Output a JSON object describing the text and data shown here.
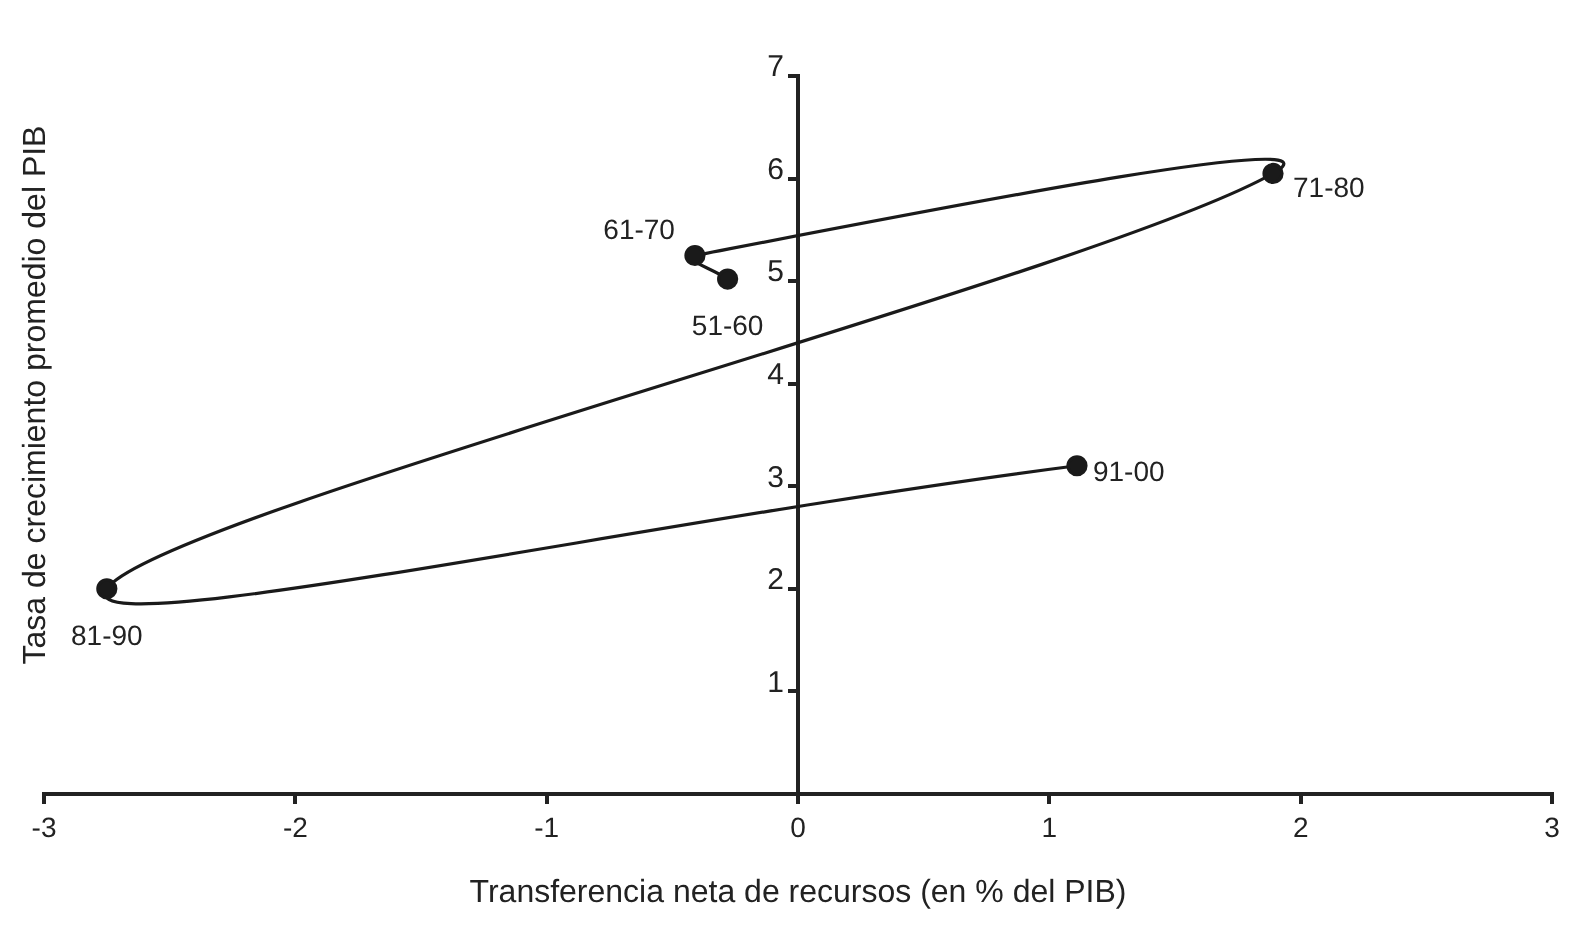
{
  "chart_data": {
    "type": "line",
    "xlabel": "Transferencia neta de recursos (en % del PIB)",
    "ylabel": "Tasa de crecimiento promedio del PIB",
    "series": [
      {
        "color": "#1a1a1a",
        "x": [
          -0.28,
          -0.41,
          1.89,
          -2.75,
          1.11
        ],
        "values": [
          5.02,
          5.25,
          6.05,
          2.0,
          3.2
        ]
      }
    ],
    "annotations": [
      {
        "text": "51-60",
        "x": -0.28,
        "y": 5.02
      },
      {
        "text": "61-70",
        "x": -0.41,
        "y": 5.25
      },
      {
        "text": "71-80",
        "x": 1.89,
        "y": 6.05
      },
      {
        "text": "81-90",
        "x": -2.75,
        "y": 2.0
      },
      {
        "text": "91-00",
        "x": 1.11,
        "y": 3.2
      }
    ],
    "xlim": [
      -3,
      3
    ],
    "xticks": [
      -3,
      -2,
      -1,
      0,
      1,
      2,
      3
    ],
    "ylim": [
      0,
      7
    ],
    "yticks": [
      1,
      2,
      3,
      4,
      5,
      6,
      7
    ],
    "grid": false,
    "legend": false,
    "marker": "circle",
    "line_style": "solid"
  }
}
